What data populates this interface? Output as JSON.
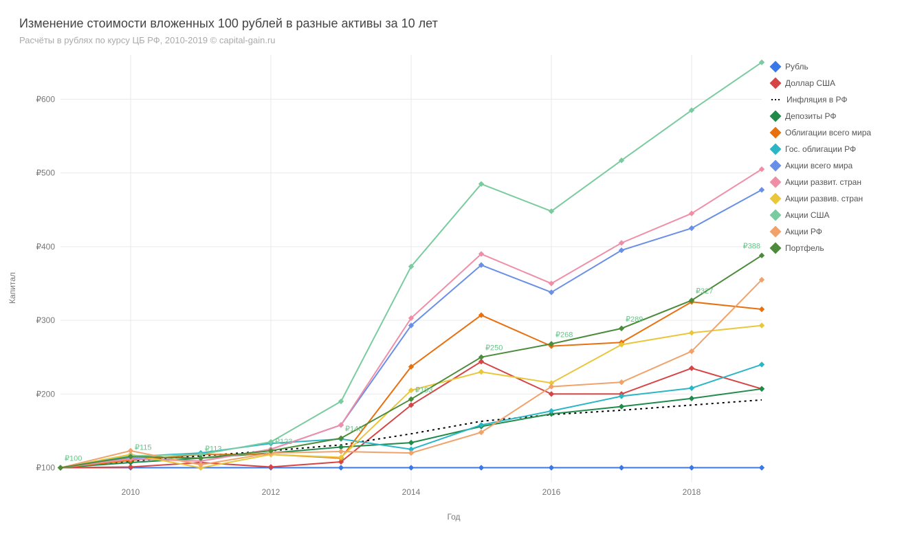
{
  "title": "Изменение стоимости вложенных 100 рублей в разные активы за 10 лет",
  "subtitle": "Расчёты в рублях по курсу ЦБ РФ, 2010-2019 © capital-gain.ru",
  "chart": {
    "type": "line",
    "x_label": "Год",
    "y_label": "Капитал",
    "background_color": "#ffffff",
    "grid_color": "#e9e9e9",
    "line_width": 2,
    "marker_style": "diamond",
    "marker_size": 7,
    "x_values": [
      2009,
      2010,
      2011,
      2012,
      2013,
      2014,
      2015,
      2016,
      2017,
      2018,
      2019
    ],
    "x_ticks": [
      2010,
      2012,
      2014,
      2016,
      2018
    ],
    "y_ticks": [
      100,
      200,
      300,
      400,
      500,
      600
    ],
    "y_tick_prefix": "₽",
    "ylim": [
      80,
      660
    ],
    "xlim": [
      2009,
      2019
    ],
    "series": [
      {
        "key": "ruble",
        "label": "Рубль",
        "color": "#3b78e7",
        "dotted": false,
        "values": [
          100,
          100,
          100,
          100,
          100,
          100,
          100,
          100,
          100,
          100,
          100
        ]
      },
      {
        "key": "usd",
        "label": "Доллар США",
        "color": "#d64545",
        "dotted": false,
        "values": [
          100,
          101,
          107,
          101,
          108,
          185,
          244,
          200,
          200,
          235,
          207
        ]
      },
      {
        "key": "infl",
        "label": "Инфляция в РФ",
        "color": "#000000",
        "dotted": true,
        "values": [
          100,
          109,
          116,
          123,
          131,
          146,
          163,
          172,
          178,
          185,
          192
        ]
      },
      {
        "key": "deposits",
        "label": "Депозиты РФ",
        "color": "#1f8a49",
        "dotted": false,
        "values": [
          100,
          107,
          113,
          120,
          128,
          134,
          156,
          173,
          183,
          194,
          207
        ]
      },
      {
        "key": "world_bonds",
        "label": "Облигации всего мира",
        "color": "#e8700f",
        "dotted": false,
        "values": [
          100,
          110,
          118,
          118,
          113,
          237,
          307,
          265,
          270,
          325,
          315
        ]
      },
      {
        "key": "ru_gov_bonds",
        "label": "Гос. облигации РФ",
        "color": "#2bb6c6",
        "dotted": false,
        "values": [
          100,
          115,
          120,
          133,
          139,
          125,
          158,
          177,
          197,
          208,
          240
        ]
      },
      {
        "key": "world_stocks",
        "label": "Акции всего мира",
        "color": "#6a8fe7",
        "dotted": false,
        "values": [
          100,
          113,
          109,
          125,
          158,
          293,
          375,
          338,
          395,
          425,
          477
        ]
      },
      {
        "key": "dev_stocks",
        "label": "Акции развит. стран",
        "color": "#ef8fa7",
        "dotted": false,
        "values": [
          100,
          112,
          109,
          125,
          158,
          303,
          390,
          350,
          405,
          445,
          505
        ]
      },
      {
        "key": "em_stocks",
        "label": "Акции развив. стран",
        "color": "#e9c63a",
        "dotted": false,
        "values": [
          100,
          118,
          100,
          118,
          114,
          205,
          230,
          215,
          267,
          283,
          293
        ]
      },
      {
        "key": "us_stocks",
        "label": "Акции США",
        "color": "#7acb9f",
        "dotted": false,
        "values": [
          100,
          116,
          118,
          135,
          190,
          373,
          485,
          448,
          517,
          585,
          650
        ]
      },
      {
        "key": "ru_stocks",
        "label": "Акции РФ",
        "color": "#f0a26a",
        "dotted": false,
        "values": [
          100,
          123,
          104,
          120,
          122,
          120,
          148,
          210,
          216,
          258,
          355
        ]
      },
      {
        "key": "portfolio",
        "label": "Портфель",
        "color": "#4b8b3b",
        "dotted": false,
        "values": [
          100,
          115,
          113,
          123,
          140,
          193,
          250,
          268,
          289,
          327,
          388
        ],
        "show_labels": true
      }
    ],
    "legend_position": "right"
  }
}
